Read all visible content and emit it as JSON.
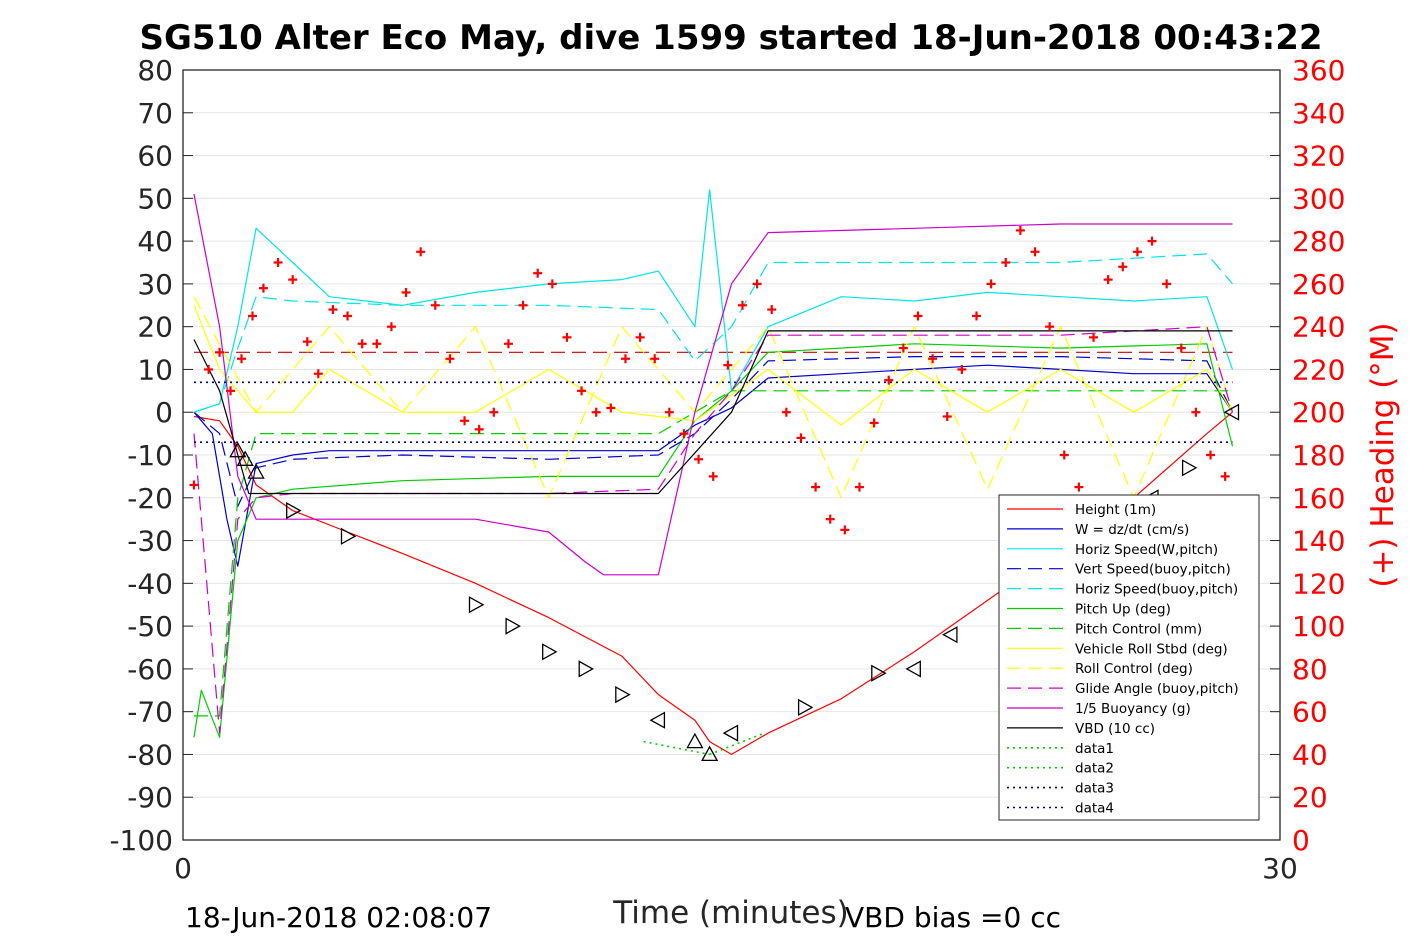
{
  "chart_data": {
    "type": "line",
    "title": "SG510 Alter Eco May, dive 1599 started 18-Jun-2018 00:43:22",
    "xlabel": "Time (minutes)",
    "ylabel_right": "(+) Heading (°M)",
    "xlim": [
      0,
      30
    ],
    "ylim_left": [
      -100,
      80
    ],
    "ylim_right": [
      0,
      360
    ],
    "x_ticks": [
      "0",
      "30"
    ],
    "y_ticks_left": [
      "80",
      "70",
      "60",
      "50",
      "40",
      "30",
      "20",
      "10",
      "0",
      "-10",
      "-20",
      "-30",
      "-40",
      "-50",
      "-60",
      "-70",
      "-80",
      "-90",
      "-100"
    ],
    "y_ticks_right": [
      "360",
      "340",
      "320",
      "300",
      "280",
      "260",
      "240",
      "220",
      "200",
      "180",
      "160",
      "140",
      "120",
      "100",
      "80",
      "60",
      "40",
      "20",
      "0"
    ],
    "grid": "horizontal",
    "legend_position": "lower-right",
    "footer_left": "18-Jun-2018 02:08:07",
    "footer_right": "VBD bias =0 cc",
    "series": [
      {
        "name": "Height (1m)",
        "color": "#ff0000",
        "style": "solid",
        "x": [
          0.3,
          1.0,
          1.5,
          2.0,
          3.0,
          4.5,
          6.0,
          8.0,
          10.0,
          12.0,
          13.0,
          14.0,
          14.4,
          15.0,
          16.0,
          18.0,
          20.0,
          22.0,
          24.0,
          26.0,
          28.0,
          28.7
        ],
        "y": [
          -1,
          -2,
          -8,
          -17,
          -23,
          -28,
          -33,
          -40,
          -48,
          -57,
          -66,
          -72,
          -77,
          -80,
          -75,
          -67,
          -56,
          -44,
          -32,
          -20,
          -5,
          0
        ]
      },
      {
        "name": "W = dz/dt (cm/s)",
        "color": "#0000cc",
        "style": "solid",
        "x": [
          0.3,
          0.8,
          1.2,
          1.5,
          2.0,
          3.0,
          4.0,
          6.0,
          8.0,
          10.0,
          12.0,
          13.0,
          14.0,
          15.0,
          16.0,
          18.0,
          20.0,
          22.0,
          24.0,
          26.0,
          28.0,
          28.7
        ],
        "y": [
          0,
          -5,
          -25,
          -36,
          -12,
          -10,
          -9,
          -9,
          -9,
          -9,
          -9,
          -9,
          -3,
          1,
          8,
          9,
          10,
          11,
          10,
          9,
          9,
          0
        ]
      },
      {
        "name": "Horiz Speed(W,pitch)",
        "color": "#00e5e5",
        "style": "solid",
        "x": [
          0.3,
          1.0,
          1.5,
          2.0,
          3.0,
          4.0,
          6.0,
          8.0,
          10.0,
          12.0,
          13.0,
          14.0,
          14.4,
          15.0,
          16.0,
          18.0,
          20.0,
          22.0,
          24.0,
          26.0,
          28.0,
          28.7
        ],
        "y": [
          0,
          2,
          20,
          43,
          35,
          27,
          25,
          28,
          30,
          31,
          33,
          20,
          52,
          5,
          20,
          27,
          26,
          28,
          27,
          26,
          27,
          10
        ]
      },
      {
        "name": "Vert Speed(buoy,pitch)",
        "color": "#0000cc",
        "style": "dashed",
        "x": [
          0.3,
          1.0,
          1.5,
          2.0,
          3.0,
          6.0,
          10.0,
          13.0,
          14.0,
          15.0,
          16.0,
          20.0,
          24.0,
          28.0,
          28.7
        ],
        "y": [
          0,
          -5,
          -22,
          -13,
          -11,
          -10,
          -11,
          -10,
          -5,
          3,
          12,
          13,
          13,
          12,
          0
        ]
      },
      {
        "name": "Horiz Speed(buoy,pitch)",
        "color": "#00e5e5",
        "style": "dashed",
        "x": [
          0.3,
          1.0,
          1.5,
          2.0,
          3.0,
          6.0,
          10.0,
          13.0,
          14.0,
          15.0,
          16.0,
          20.0,
          24.0,
          28.0,
          28.7
        ],
        "y": [
          0,
          2,
          15,
          27,
          26,
          25,
          25,
          24,
          12,
          20,
          35,
          35,
          35,
          37,
          30
        ]
      },
      {
        "name": "Pitch Up (deg)",
        "color": "#00cc00",
        "style": "solid",
        "x": [
          0.3,
          0.5,
          1.0,
          1.5,
          2.0,
          3.0,
          6.0,
          10.0,
          13.0,
          14.0,
          15.0,
          16.0,
          20.0,
          24.0,
          28.0,
          28.7
        ],
        "y": [
          -76,
          -65,
          -76,
          -30,
          -20,
          -18,
          -16,
          -15,
          -15,
          -2,
          5,
          14,
          16,
          15,
          16,
          -8
        ]
      },
      {
        "name": "Pitch Control (mm)",
        "color": "#00cc00",
        "style": "dashed",
        "x": [
          0.3,
          1.0,
          1.5,
          2.0,
          3.0,
          13.0,
          14.0,
          15.0,
          16.0,
          28.7
        ],
        "y": [
          -71,
          -71,
          -20,
          -5,
          -5,
          -5,
          0,
          5,
          5,
          5
        ]
      },
      {
        "name": "Vehicle Roll Stbd (deg)",
        "color": "#ffff00",
        "style": "solid",
        "x": [
          0.3,
          1.0,
          2.0,
          3.0,
          4.0,
          6.0,
          8.0,
          10.0,
          12.0,
          14.0,
          16.0,
          18.0,
          20.0,
          22.0,
          24.0,
          26.0,
          28.0,
          28.7
        ],
        "y": [
          25,
          10,
          0,
          0,
          10,
          0,
          0,
          10,
          0,
          -2,
          10,
          -3,
          10,
          0,
          10,
          0,
          10,
          0
        ]
      },
      {
        "name": "Roll Control (deg)",
        "color": "#ffff00",
        "style": "dashed",
        "x": [
          0.3,
          2.0,
          4.0,
          6.0,
          8.0,
          10.0,
          12.0,
          14.0,
          16.0,
          18.0,
          20.0,
          22.0,
          24.0,
          26.0,
          28.0,
          28.7
        ],
        "y": [
          27,
          0,
          20,
          0,
          20,
          -20,
          20,
          0,
          20,
          -20,
          20,
          -18,
          20,
          -20,
          20,
          0
        ]
      },
      {
        "name": "Glide Angle (buoy,pitch)",
        "color": "#cc00cc",
        "style": "dashed",
        "x": [
          0.3,
          1.0,
          1.5,
          2.0,
          3.0,
          6.0,
          10.0,
          13.0,
          14.0,
          15.0,
          16.0,
          20.0,
          24.0,
          28.0,
          28.7
        ],
        "y": [
          -5,
          -75,
          -25,
          -20,
          -19,
          -19,
          -19,
          -18,
          -5,
          5,
          18,
          18,
          18,
          20,
          0
        ]
      },
      {
        "name": "1/5 Buoyancy (g)",
        "color": "#cc00cc",
        "style": "solid",
        "x": [
          0.3,
          1.0,
          1.5,
          2.0,
          4.0,
          8.0,
          10.0,
          11.0,
          11.5,
          13.0,
          14.0,
          15.0,
          16.0,
          20.0,
          24.0,
          28.7
        ],
        "y": [
          51,
          20,
          -15,
          -25,
          -25,
          -25,
          -28,
          -35,
          -38,
          -38,
          0,
          30,
          42,
          43,
          44,
          44
        ]
      },
      {
        "name": "VBD (10 cc)",
        "color": "#000000",
        "style": "solid",
        "x": [
          0.3,
          1.0,
          1.8,
          13.0,
          15.0,
          16.0,
          28.7
        ],
        "y": [
          17,
          5,
          -19,
          -19,
          0,
          19,
          19
        ]
      },
      {
        "name": "data1",
        "color": "#00cc00",
        "style": "dotted",
        "x": [
          12.6,
          14.4
        ],
        "y": [
          -77,
          -80
        ]
      },
      {
        "name": "data2",
        "color": "#00cc00",
        "style": "dotted",
        "x": [
          14.4,
          15.9
        ],
        "y": [
          -80,
          -75
        ]
      },
      {
        "name": "data3",
        "color": "#000080",
        "style": "dotted",
        "x": [
          0.3,
          28.7
        ],
        "y": [
          7,
          7
        ]
      },
      {
        "name": "data4",
        "color": "#000080",
        "style": "dotted",
        "x": [
          0.3,
          28.7
        ],
        "y": [
          -7,
          -7
        ]
      }
    ],
    "reference_lines": [
      {
        "color": "#cc0000",
        "style": "dashed",
        "x": [
          0.3,
          28.7
        ],
        "y": [
          14,
          14
        ]
      }
    ],
    "heading_points": {
      "color": "#ff0000",
      "marker": "+",
      "x": [
        0.3,
        0.7,
        1.0,
        1.3,
        1.6,
        1.9,
        2.2,
        2.6,
        3.0,
        3.4,
        3.7,
        4.1,
        4.5,
        4.9,
        5.3,
        5.7,
        6.1,
        6.5,
        6.9,
        7.3,
        7.7,
        8.1,
        8.5,
        8.9,
        9.3,
        9.7,
        10.1,
        10.5,
        10.9,
        11.3,
        11.7,
        12.1,
        12.5,
        12.9,
        13.3,
        13.7,
        14.1,
        14.5,
        14.9,
        15.3,
        15.7,
        16.1,
        16.5,
        16.9,
        17.3,
        17.7,
        18.1,
        18.5,
        18.9,
        19.3,
        19.7,
        20.1,
        20.5,
        20.9,
        21.3,
        21.7,
        22.1,
        22.5,
        22.9,
        23.3,
        23.7,
        24.1,
        24.5,
        24.9,
        25.3,
        25.7,
        26.1,
        26.5,
        26.9,
        27.3,
        27.7,
        28.1,
        28.5
      ],
      "heading": [
        166,
        220,
        228,
        210,
        225,
        245,
        258,
        270,
        262,
        233,
        218,
        248,
        245,
        232,
        232,
        240,
        256,
        275,
        250,
        225,
        196,
        192,
        200,
        232,
        250,
        265,
        260,
        235,
        210,
        200,
        202,
        225,
        235,
        225,
        200,
        190,
        178,
        170,
        222,
        250,
        260,
        248,
        200,
        188,
        165,
        150,
        145,
        165,
        195,
        215,
        230,
        245,
        225,
        198,
        220,
        245,
        260,
        270,
        285,
        275,
        240,
        180,
        165,
        235,
        262,
        268,
        275,
        280,
        260,
        230,
        200,
        180,
        170
      ]
    },
    "marker_points": {
      "color": "#000000",
      "triangles": [
        {
          "x": 1.5,
          "y": -9,
          "dir": "up"
        },
        {
          "x": 1.7,
          "y": -11,
          "dir": "up"
        },
        {
          "x": 2.0,
          "y": -14,
          "dir": "up"
        },
        {
          "x": 3.0,
          "y": -23,
          "dir": "right"
        },
        {
          "x": 4.5,
          "y": -29,
          "dir": "right"
        },
        {
          "x": 8.0,
          "y": -45,
          "dir": "right"
        },
        {
          "x": 9.0,
          "y": -50,
          "dir": "right"
        },
        {
          "x": 10.0,
          "y": -56,
          "dir": "right"
        },
        {
          "x": 11.0,
          "y": -60,
          "dir": "right"
        },
        {
          "x": 12.0,
          "y": -66,
          "dir": "right"
        },
        {
          "x": 13.0,
          "y": -72,
          "dir": "left"
        },
        {
          "x": 14.0,
          "y": -77,
          "dir": "up"
        },
        {
          "x": 14.4,
          "y": -80,
          "dir": "up"
        },
        {
          "x": 15.0,
          "y": -75,
          "dir": "left"
        },
        {
          "x": 17.0,
          "y": -69,
          "dir": "right"
        },
        {
          "x": 19.0,
          "y": -61,
          "dir": "right"
        },
        {
          "x": 20.0,
          "y": -60,
          "dir": "left"
        },
        {
          "x": 21.0,
          "y": -52,
          "dir": "left"
        },
        {
          "x": 23.0,
          "y": -42,
          "dir": "left"
        },
        {
          "x": 25.0,
          "y": -36,
          "dir": "right"
        },
        {
          "x": 26.5,
          "y": -20,
          "dir": "left"
        },
        {
          "x": 27.5,
          "y": -13,
          "dir": "right"
        },
        {
          "x": 28.7,
          "y": 0,
          "dir": "left"
        }
      ]
    }
  }
}
